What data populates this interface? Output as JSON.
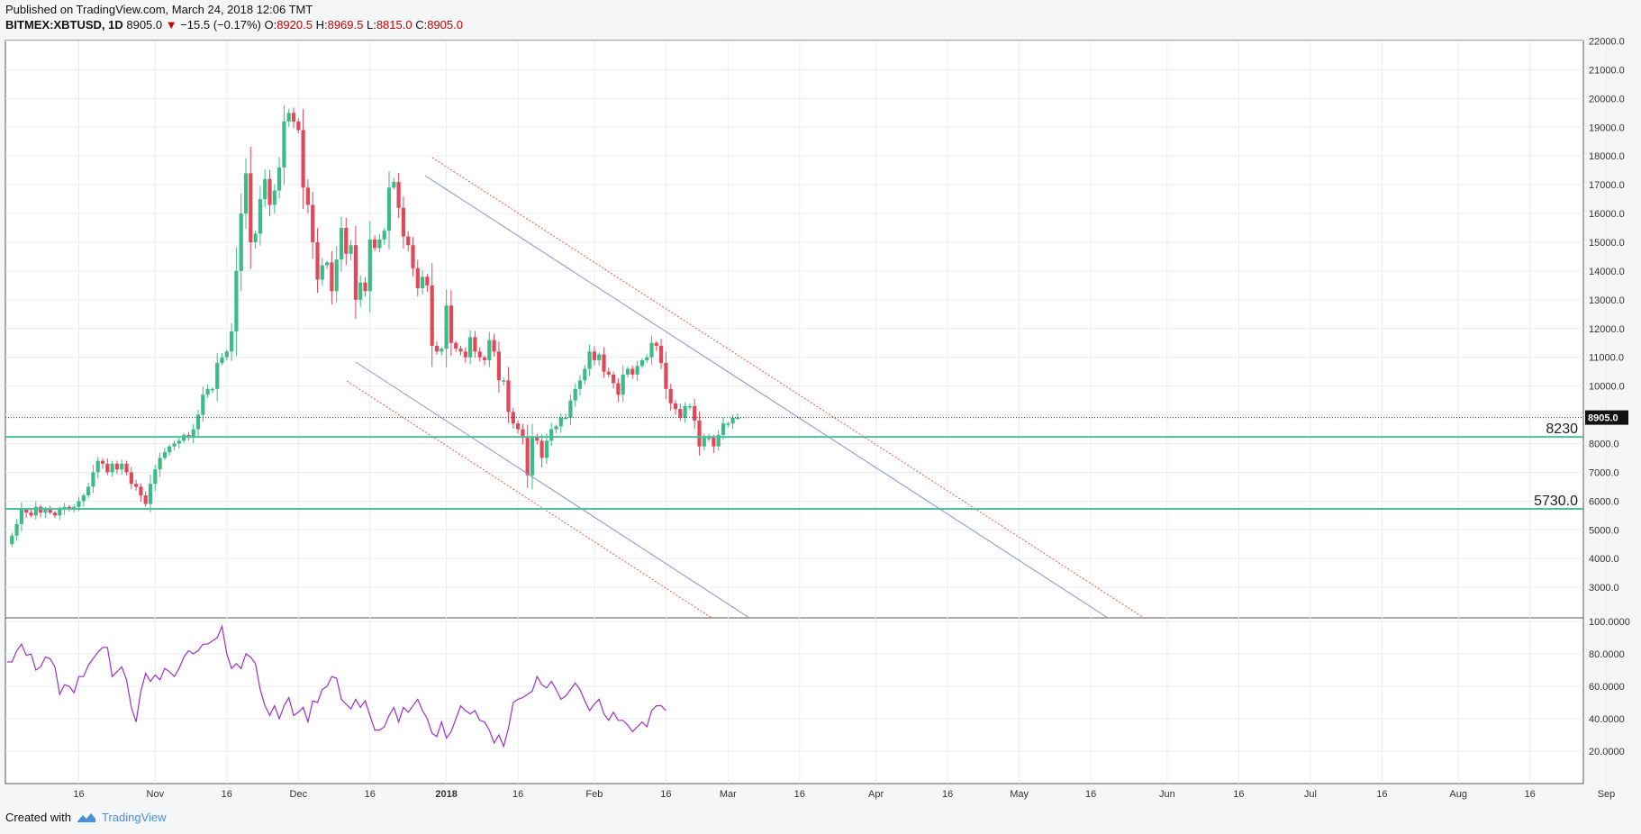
{
  "header": {
    "published": "Published on TradingView.com, March 24, 2018 12:06 TMT",
    "symbol": "BITMEX:XBTUSD, 1D",
    "last": "8905.0",
    "change": "−15.5 (−0.17%)",
    "o_label": "O:",
    "o": "8920.5",
    "h_label": "H:",
    "h": "8969.5",
    "l_label": "L:",
    "l": "8815.0",
    "c_label": "C:",
    "c": "8905.0"
  },
  "footer": {
    "created_with": "Created with",
    "brand": "TradingView"
  },
  "colors": {
    "up": "#3dbb86",
    "down": "#e2475a",
    "rsi": "#9b30c8",
    "support": "#4dbf9e",
    "channel": "#8a8fd4",
    "channel_outer": "#e8583f"
  },
  "chart_data": [
    {
      "type": "candlestick",
      "title": "BITMEX:XBTUSD, 1D",
      "ylim": [
        2000,
        22000
      ],
      "y_ticks": [
        "3000.0",
        "4000.0",
        "5000.0",
        "6000.0",
        "7000.0",
        "8000.0",
        "9000.0",
        "10000.0",
        "11000.0",
        "12000.0",
        "13000.0",
        "14000.0",
        "15000.0",
        "16000.0",
        "17000.0",
        "18000.0",
        "19000.0",
        "20000.0",
        "21000.0",
        "22000.0"
      ],
      "x_ticks": [
        "16",
        "Nov",
        "16",
        "Dec",
        "16",
        "2018",
        "16",
        "Feb",
        "16",
        "Mar",
        "16",
        "Apr",
        "16",
        "May",
        "16",
        "Jun",
        "16",
        "Jul",
        "16",
        "Aug",
        "16",
        "Sep"
      ],
      "x_tick_days": [
        15,
        31,
        46,
        61,
        76,
        92,
        107,
        123,
        138,
        151,
        166,
        182,
        197,
        212,
        227,
        243,
        258,
        273,
        288,
        304,
        319,
        335
      ],
      "start_date": "2017-10-01",
      "closes": [
        4800,
        5200,
        5700,
        5600,
        5500,
        5800,
        5600,
        5700,
        5600,
        5500,
        5700,
        5800,
        5700,
        5800,
        6000,
        6200,
        6500,
        7000,
        7400,
        7300,
        7000,
        7300,
        7100,
        7300,
        7000,
        6600,
        6500,
        6200,
        5900,
        6600,
        7100,
        7500,
        7700,
        7900,
        8000,
        8100,
        8300,
        8200,
        8500,
        9000,
        9700,
        9900,
        9900,
        10800,
        11000,
        11200,
        11900,
        14000,
        16000,
        17400,
        15000,
        15300,
        16500,
        17200,
        16300,
        16800,
        17600,
        19200,
        19500,
        19200,
        18900,
        16900,
        16300,
        15000,
        13700,
        14200,
        14300,
        13300,
        14400,
        15500,
        14600,
        14900,
        13000,
        13600,
        13300,
        15100,
        14800,
        15100,
        15400,
        16900,
        17100,
        16200,
        15200,
        14900,
        14100,
        13400,
        13800,
        13500,
        11400,
        11200,
        11300,
        12800,
        11500,
        11300,
        11200,
        11000,
        11700,
        11200,
        11000,
        10900,
        11600,
        11200,
        10200,
        10200,
        9100,
        8700,
        8500,
        8200,
        6900,
        8200,
        8100,
        7500,
        8100,
        8500,
        8600,
        8900,
        8900,
        9500,
        9900,
        10200,
        10600,
        11200,
        10900,
        11100,
        10500,
        10400,
        10100,
        9700,
        10400,
        10600,
        10400,
        10700,
        10900,
        11000,
        11500,
        11400,
        10800,
        9900,
        9400,
        9200,
        8900,
        9300,
        9300,
        8800,
        7900,
        8200,
        8200,
        7900,
        8300,
        8700,
        8700,
        8900,
        8905
      ],
      "current_price": 8905.0,
      "support_levels": [
        {
          "value": 8230,
          "label": "8230"
        },
        {
          "value": 5730,
          "label": "5730.0"
        }
      ],
      "price_label": "8905.0"
    },
    {
      "type": "line",
      "ylim": [
        15,
        100
      ],
      "y_ticks": [
        "20.0000",
        "40.0000",
        "60.0000",
        "80.0000",
        "100.0000"
      ],
      "values": [
        75,
        75,
        82,
        86,
        79,
        80,
        70,
        72,
        78,
        77,
        72,
        55,
        61,
        60,
        56,
        66,
        66,
        73,
        77,
        81,
        84,
        84,
        66,
        69,
        72,
        64,
        47,
        38,
        57,
        68,
        63,
        67,
        64,
        71,
        69,
        66,
        71,
        78,
        82,
        80,
        82,
        86,
        86,
        88,
        90,
        97,
        80,
        71,
        74,
        71,
        80,
        78,
        74,
        58,
        48,
        42,
        48,
        40,
        48,
        53,
        42,
        44,
        47,
        38,
        51,
        50,
        58,
        60,
        66,
        65,
        52,
        49,
        46,
        52,
        47,
        51,
        42,
        33,
        33,
        35,
        42,
        47,
        38,
        47,
        44,
        48,
        52,
        45,
        40,
        31,
        29,
        38,
        28,
        32,
        40,
        48,
        45,
        43,
        45,
        39,
        38,
        33,
        25,
        30,
        23,
        34,
        50,
        52,
        53,
        55,
        57,
        66,
        61,
        59,
        63,
        58,
        52,
        54,
        58,
        62,
        58,
        51,
        45,
        49,
        52,
        43,
        39,
        44,
        39,
        39,
        36,
        32,
        35,
        38,
        35,
        45,
        48,
        48,
        45
      ],
      "series_color": "#9b30c8"
    }
  ]
}
